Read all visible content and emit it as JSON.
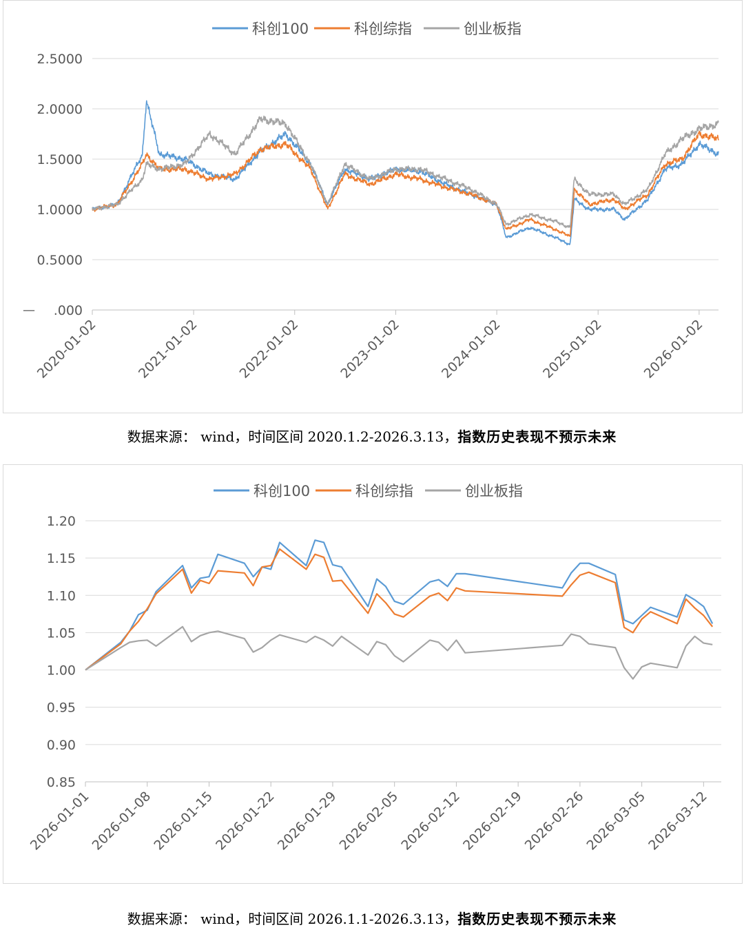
{
  "charts": [
    {
      "legend": [
        "科创100",
        "科创综指",
        "创业板指"
      ],
      "y_ticks": [
        "2.5000",
        "2.0000",
        "1.5000",
        "1.0000",
        "0.5000",
        ".000"
      ],
      "y_bottom_prefix": "—",
      "x_ticks": [
        "2020-01-02",
        "2021-01-02",
        "2022-01-02",
        "2023-01-02",
        "2024-01-02",
        "2025-01-02",
        "2026-01-02"
      ],
      "caption_normal": "数据来源： wind，时间区间 2020.1.2-2026.3.13，",
      "caption_bold": "指数历史表现不预示未来"
    },
    {
      "legend": [
        "科创100",
        "科创综指",
        "创业板指"
      ],
      "y_ticks": [
        "1.20",
        "1.15",
        "1.10",
        "1.05",
        "1.00",
        "0.95",
        "0.90",
        "0.85"
      ],
      "x_ticks": [
        "2026-01-01",
        "2026-01-08",
        "2026-01-15",
        "2026-01-22",
        "2026-01-29",
        "2026-02-05",
        "2026-02-12",
        "2026-02-19",
        "2026-02-26",
        "2026-03-05",
        "2026-03-12"
      ],
      "caption_normal": "数据来源： wind，时间区间 2026.1.1-2026.3.13，",
      "caption_bold": "指数历史表现不预示未来"
    }
  ],
  "colors": {
    "series1": "#5b9bd5",
    "series2": "#ed7d31",
    "series3": "#a5a5a5",
    "grid": "#d9d9d9",
    "axis": "#bfbfbf"
  },
  "chart_data": [
    {
      "type": "line",
      "legend_placement": "top-center",
      "grid": true,
      "ylim": [
        0,
        2.5
      ],
      "x": [
        "2020-01-02",
        "2020-04-01",
        "2020-07-01",
        "2020-07-15",
        "2020-09-01",
        "2020-12-01",
        "2021-03-01",
        "2021-06-01",
        "2021-09-01",
        "2021-12-01",
        "2022-03-01",
        "2022-05-01",
        "2022-07-01",
        "2022-10-01",
        "2023-01-02",
        "2023-04-01",
        "2023-07-01",
        "2023-10-01",
        "2024-01-02",
        "2024-02-05",
        "2024-05-01",
        "2024-08-01",
        "2024-09-23",
        "2024-10-08",
        "2024-12-01",
        "2025-03-01",
        "2025-04-08",
        "2025-07-01",
        "2025-09-01",
        "2025-11-01",
        "2026-01-02",
        "2026-03-13"
      ],
      "series": [
        {
          "name": "科创100",
          "values": [
            1.0,
            1.05,
            1.55,
            2.08,
            1.55,
            1.5,
            1.35,
            1.3,
            1.58,
            1.75,
            1.45,
            1.05,
            1.4,
            1.3,
            1.4,
            1.38,
            1.25,
            1.15,
            1.05,
            0.72,
            0.82,
            0.72,
            0.65,
            1.1,
            1.0,
            1.0,
            0.9,
            1.1,
            1.4,
            1.45,
            1.65,
            1.55
          ]
        },
        {
          "name": "科创综指",
          "values": [
            1.0,
            1.05,
            1.45,
            1.55,
            1.4,
            1.4,
            1.3,
            1.35,
            1.6,
            1.65,
            1.4,
            1.0,
            1.35,
            1.25,
            1.35,
            1.3,
            1.22,
            1.15,
            1.05,
            0.8,
            0.9,
            0.8,
            0.73,
            1.2,
            1.05,
            1.1,
            1.0,
            1.15,
            1.45,
            1.5,
            1.75,
            1.7
          ]
        },
        {
          "name": "创业板指",
          "values": [
            1.0,
            1.05,
            1.3,
            1.45,
            1.4,
            1.45,
            1.75,
            1.55,
            1.9,
            1.85,
            1.45,
            1.05,
            1.45,
            1.3,
            1.4,
            1.4,
            1.3,
            1.2,
            1.05,
            0.85,
            0.95,
            0.88,
            0.82,
            1.3,
            1.15,
            1.15,
            1.05,
            1.2,
            1.55,
            1.7,
            1.8,
            1.85
          ]
        }
      ]
    },
    {
      "type": "line",
      "legend_placement": "top-center",
      "grid": true,
      "ylim": [
        0.85,
        1.2
      ],
      "x": [
        "2026-01-01",
        "2026-01-05",
        "2026-01-06",
        "2026-01-07",
        "2026-01-08",
        "2026-01-09",
        "2026-01-12",
        "2026-01-13",
        "2026-01-14",
        "2026-01-15",
        "2026-01-16",
        "2026-01-19",
        "2026-01-20",
        "2026-01-21",
        "2026-01-22",
        "2026-01-23",
        "2026-01-26",
        "2026-01-27",
        "2026-01-28",
        "2026-01-29",
        "2026-01-30",
        "2026-02-02",
        "2026-02-03",
        "2026-02-04",
        "2026-02-05",
        "2026-02-06",
        "2026-02-09",
        "2026-02-10",
        "2026-02-11",
        "2026-02-12",
        "2026-02-13",
        "2026-02-24",
        "2026-02-25",
        "2026-02-26",
        "2026-02-27",
        "2026-03-02",
        "2026-03-03",
        "2026-03-04",
        "2026-03-05",
        "2026-03-06",
        "2026-03-09",
        "2026-03-10",
        "2026-03-11",
        "2026-03-12",
        "2026-03-13"
      ],
      "series": [
        {
          "name": "科创100",
          "values": [
            1.0,
            1.037,
            1.052,
            1.074,
            1.08,
            1.105,
            1.14,
            1.11,
            1.123,
            1.125,
            1.155,
            1.143,
            1.125,
            1.138,
            1.135,
            1.171,
            1.14,
            1.174,
            1.171,
            1.141,
            1.138,
            1.085,
            1.122,
            1.112,
            1.092,
            1.088,
            1.118,
            1.121,
            1.112,
            1.129,
            1.129,
            1.11,
            1.13,
            1.143,
            1.143,
            1.128,
            1.067,
            1.062,
            1.073,
            1.084,
            1.071,
            1.101,
            1.094,
            1.085,
            1.062
          ]
        },
        {
          "name": "科创综指",
          "values": [
            1.0,
            1.035,
            1.052,
            1.065,
            1.082,
            1.102,
            1.135,
            1.103,
            1.12,
            1.116,
            1.133,
            1.13,
            1.113,
            1.138,
            1.14,
            1.162,
            1.135,
            1.155,
            1.151,
            1.119,
            1.12,
            1.076,
            1.102,
            1.09,
            1.075,
            1.071,
            1.099,
            1.103,
            1.093,
            1.11,
            1.106,
            1.099,
            1.114,
            1.127,
            1.131,
            1.117,
            1.057,
            1.05,
            1.068,
            1.078,
            1.062,
            1.095,
            1.083,
            1.073,
            1.058
          ]
        },
        {
          "name": "创业板指",
          "values": [
            1.0,
            1.03,
            1.037,
            1.039,
            1.04,
            1.032,
            1.058,
            1.038,
            1.046,
            1.05,
            1.052,
            1.042,
            1.024,
            1.03,
            1.04,
            1.047,
            1.037,
            1.045,
            1.04,
            1.032,
            1.045,
            1.02,
            1.038,
            1.034,
            1.019,
            1.011,
            1.04,
            1.037,
            1.026,
            1.04,
            1.023,
            1.033,
            1.048,
            1.045,
            1.035,
            1.03,
            1.003,
            0.988,
            1.004,
            1.009,
            1.003,
            1.032,
            1.045,
            1.036,
            1.034
          ]
        }
      ]
    }
  ]
}
